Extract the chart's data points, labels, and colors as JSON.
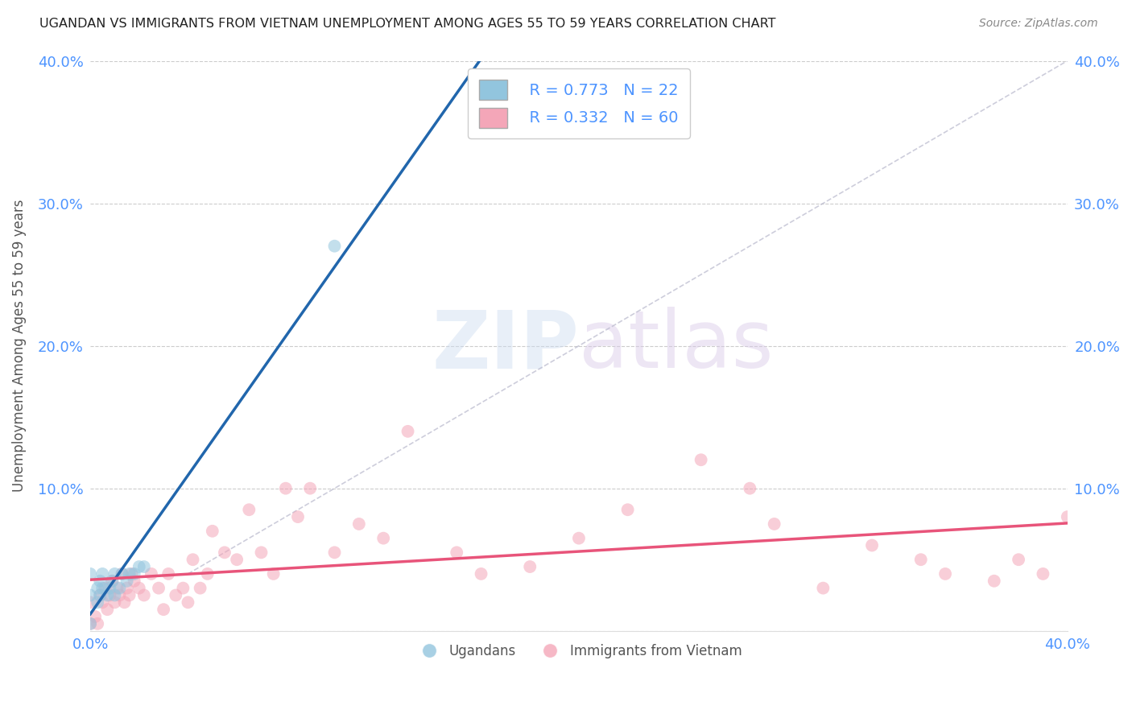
{
  "title": "UGANDAN VS IMMIGRANTS FROM VIETNAM UNEMPLOYMENT AMONG AGES 55 TO 59 YEARS CORRELATION CHART",
  "source": "Source: ZipAtlas.com",
  "ylabel": "Unemployment Among Ages 55 to 59 years",
  "xlim": [
    0.0,
    0.4
  ],
  "ylim": [
    0.0,
    0.4
  ],
  "background_color": "#ffffff",
  "watermark_zip": "ZIP",
  "watermark_atlas": "atlas",
  "legend_r1": "R = 0.773",
  "legend_n1": "N = 22",
  "legend_r2": "R = 0.332",
  "legend_n2": "N = 60",
  "blue_color": "#92c5de",
  "pink_color": "#f4a6b8",
  "blue_line_color": "#2166ac",
  "pink_line_color": "#e8547a",
  "dashed_line_color": "#b8b8cc",
  "axis_label_color": "#4d94ff",
  "title_color": "#222222",
  "ugandan_x": [
    0.0,
    0.0,
    0.0,
    0.003,
    0.003,
    0.004,
    0.004,
    0.005,
    0.005,
    0.007,
    0.008,
    0.009,
    0.01,
    0.01,
    0.012,
    0.013,
    0.015,
    0.016,
    0.018,
    0.02,
    0.022,
    0.1
  ],
  "ugandan_y": [
    0.005,
    0.025,
    0.04,
    0.02,
    0.03,
    0.025,
    0.035,
    0.03,
    0.04,
    0.025,
    0.03,
    0.035,
    0.025,
    0.04,
    0.03,
    0.04,
    0.035,
    0.04,
    0.04,
    0.045,
    0.045,
    0.27
  ],
  "vietnam_x": [
    0.0,
    0.0,
    0.002,
    0.003,
    0.004,
    0.005,
    0.006,
    0.007,
    0.008,
    0.009,
    0.01,
    0.011,
    0.012,
    0.013,
    0.014,
    0.015,
    0.016,
    0.017,
    0.018,
    0.02,
    0.022,
    0.025,
    0.028,
    0.03,
    0.032,
    0.035,
    0.038,
    0.04,
    0.042,
    0.045,
    0.048,
    0.05,
    0.055,
    0.06,
    0.065,
    0.07,
    0.075,
    0.08,
    0.085,
    0.09,
    0.1,
    0.11,
    0.12,
    0.13,
    0.15,
    0.16,
    0.18,
    0.2,
    0.22,
    0.25,
    0.27,
    0.28,
    0.3,
    0.32,
    0.34,
    0.35,
    0.37,
    0.38,
    0.39,
    0.4
  ],
  "vietnam_y": [
    0.005,
    0.02,
    0.01,
    0.005,
    0.025,
    0.02,
    0.03,
    0.015,
    0.025,
    0.035,
    0.02,
    0.03,
    0.025,
    0.04,
    0.02,
    0.03,
    0.025,
    0.04,
    0.035,
    0.03,
    0.025,
    0.04,
    0.03,
    0.015,
    0.04,
    0.025,
    0.03,
    0.02,
    0.05,
    0.03,
    0.04,
    0.07,
    0.055,
    0.05,
    0.085,
    0.055,
    0.04,
    0.1,
    0.08,
    0.1,
    0.055,
    0.075,
    0.065,
    0.14,
    0.055,
    0.04,
    0.045,
    0.065,
    0.085,
    0.12,
    0.1,
    0.075,
    0.03,
    0.06,
    0.05,
    0.04,
    0.035,
    0.05,
    0.04,
    0.08
  ],
  "ugandan_line_x0": 0.0,
  "ugandan_line_x1": 0.055,
  "vietnam_line_x0": 0.0,
  "vietnam_line_x1": 0.4
}
